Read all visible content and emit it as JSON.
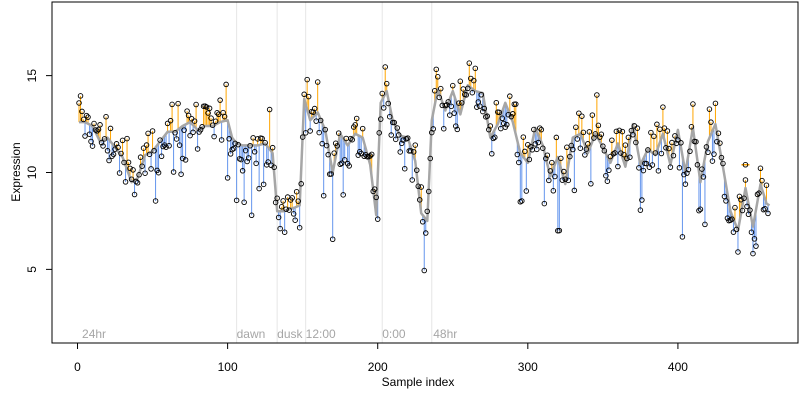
{
  "chart_data": {
    "type": "line",
    "title": "",
    "xlabel": "Sample index",
    "ylabel": "Expression",
    "xlim": [
      -17,
      480
    ],
    "ylim": [
      1.2,
      18.8
    ],
    "x_ticks": [
      0,
      100,
      200,
      300,
      400
    ],
    "y_ticks": [
      5,
      10,
      15
    ],
    "grid": false,
    "legend": "none",
    "colors": {
      "smooth": "#a6a6a6",
      "above": "#ffa500",
      "below": "#6495ed",
      "points": "#000000",
      "marker": "#ffa500",
      "guides": "#e6e6e6",
      "annotation": "#a6a6a6"
    },
    "annotations": [
      {
        "label": "24hr",
        "x": 3
      },
      {
        "label": "dawn",
        "x": 106
      },
      {
        "label": "dusk",
        "x": 133
      },
      {
        "label": "12:00",
        "x": 152
      },
      {
        "label": "0:00",
        "x": 203
      },
      {
        "label": "48hr",
        "x": 237
      }
    ],
    "guides": [
      106,
      133,
      152,
      203,
      236
    ],
    "marker_point": {
      "x": 445,
      "y": 10.4
    },
    "smooth_knots": [
      [
        1,
        12.6
      ],
      [
        5,
        12.6
      ],
      [
        10,
        12.4
      ],
      [
        15,
        11.6
      ],
      [
        20,
        11.8
      ],
      [
        25,
        11.3
      ],
      [
        30,
        10.8
      ],
      [
        36,
        9.5
      ],
      [
        40,
        9.7
      ],
      [
        45,
        10.9
      ],
      [
        50,
        11.1
      ],
      [
        55,
        11.6
      ],
      [
        60,
        12.1
      ],
      [
        65,
        12.1
      ],
      [
        70,
        12.4
      ],
      [
        75,
        12.6
      ],
      [
        80,
        12.2
      ],
      [
        85,
        12.4
      ],
      [
        90,
        12.4
      ],
      [
        95,
        12.6
      ],
      [
        100,
        12.7
      ],
      [
        103,
        11.8
      ],
      [
        106,
        11.5
      ],
      [
        110,
        11.4
      ],
      [
        115,
        11.4
      ],
      [
        120,
        11.4
      ],
      [
        125,
        11.5
      ],
      [
        130,
        11.0
      ],
      [
        133,
        8.0
      ],
      [
        137,
        8.0
      ],
      [
        141,
        8.1
      ],
      [
        145,
        8.2
      ],
      [
        148,
        8.3
      ],
      [
        151,
        13.8
      ],
      [
        155,
        12.7
      ],
      [
        160,
        13.1
      ],
      [
        165,
        12.2
      ],
      [
        170,
        10.0
      ],
      [
        175,
        12.0
      ],
      [
        180,
        11.4
      ],
      [
        185,
        12.0
      ],
      [
        190,
        11.8
      ],
      [
        195,
        10.4
      ],
      [
        199,
        7.8
      ],
      [
        202,
        13.6
      ],
      [
        206,
        14.2
      ],
      [
        210,
        12.7
      ],
      [
        215,
        11.9
      ],
      [
        220,
        11.8
      ],
      [
        225,
        10.6
      ],
      [
        229,
        7.9
      ],
      [
        233,
        7.5
      ],
      [
        236,
        12.7
      ],
      [
        240,
        14.3
      ],
      [
        245,
        13.2
      ],
      [
        250,
        14.2
      ],
      [
        255,
        13.0
      ],
      [
        260,
        14.5
      ],
      [
        265,
        14.2
      ],
      [
        270,
        14.1
      ],
      [
        275,
        11.8
      ],
      [
        280,
        12.5
      ],
      [
        285,
        13.6
      ],
      [
        290,
        12.6
      ],
      [
        295,
        11.0
      ],
      [
        300,
        10.5
      ],
      [
        305,
        12.3
      ],
      [
        310,
        11.4
      ],
      [
        315,
        9.8
      ],
      [
        320,
        10.8
      ],
      [
        325,
        9.4
      ],
      [
        330,
        11.8
      ],
      [
        335,
        12.0
      ],
      [
        340,
        11.0
      ],
      [
        345,
        12.0
      ],
      [
        350,
        11.3
      ],
      [
        355,
        10.5
      ],
      [
        360,
        11.5
      ],
      [
        365,
        10.3
      ],
      [
        370,
        12.5
      ],
      [
        375,
        10.4
      ],
      [
        380,
        11.2
      ],
      [
        385,
        10.9
      ],
      [
        390,
        12.0
      ],
      [
        395,
        10.4
      ],
      [
        400,
        12.2
      ],
      [
        405,
        10.0
      ],
      [
        410,
        12.3
      ],
      [
        415,
        9.5
      ],
      [
        420,
        11.6
      ],
      [
        425,
        12.5
      ],
      [
        430,
        10.3
      ],
      [
        435,
        8.0
      ],
      [
        440,
        7.0
      ],
      [
        445,
        9.2
      ],
      [
        450,
        7.2
      ],
      [
        455,
        9.4
      ],
      [
        459,
        8.4
      ],
      [
        461,
        8.3
      ]
    ],
    "n_points": 460,
    "seed": 12345
  }
}
